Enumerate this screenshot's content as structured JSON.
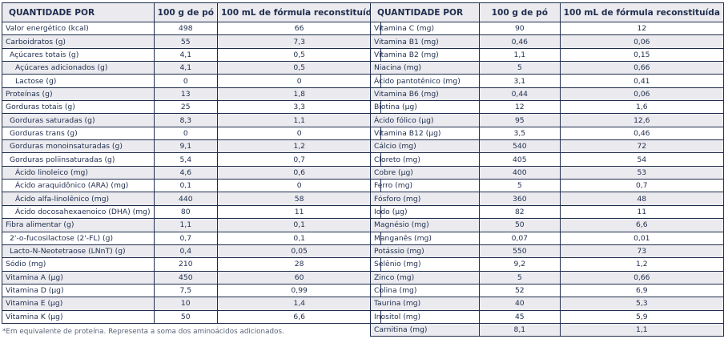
{
  "headers": {
    "quantity": "QUANTIDADE POR",
    "per_100g": "100 g de pó",
    "per_100ml": "100 mL de fórmula reconstituída"
  },
  "left_rows": [
    {
      "label": "Valor energético (kcal)",
      "v1": "498",
      "v2": "66",
      "indent": 0
    },
    {
      "label": "Carboidratos (g)",
      "v1": "55",
      "v2": "7,3",
      "indent": 0
    },
    {
      "label": "Açúcares totais (g)",
      "v1": "4,1",
      "v2": "0,5",
      "indent": 1
    },
    {
      "label": "Açúcares adicionados (g)",
      "v1": "4,1",
      "v2": "0,5",
      "indent": 2
    },
    {
      "label": "Lactose (g)",
      "v1": "0",
      "v2": "0",
      "indent": 2
    },
    {
      "label": "Proteínas (g)",
      "v1": "13",
      "v2": "1,8",
      "indent": 0
    },
    {
      "label": "Gorduras totais (g)",
      "v1": "25",
      "v2": "3,3",
      "indent": 0
    },
    {
      "label": "Gorduras saturadas (g)",
      "v1": "8,3",
      "v2": "1,1",
      "indent": 1
    },
    {
      "label": "Gorduras trans (g)",
      "v1": "0",
      "v2": "0",
      "indent": 1
    },
    {
      "label": "Gorduras monoinsaturadas (g)",
      "v1": "9,1",
      "v2": "1,2",
      "indent": 1
    },
    {
      "label": "Gorduras poli­insaturadas (g)",
      "v1": "5,4",
      "v2": "0,7",
      "indent": 1
    },
    {
      "label": "Ácido linoleico (mg)",
      "v1": "4,6",
      "v2": "0,6",
      "indent": 2
    },
    {
      "label": "Ácido araquidônico (ARA) (mg)",
      "v1": "0,1",
      "v2": "0",
      "indent": 2
    },
    {
      "label": "Ácido alfa-linolênico (mg)",
      "v1": "440",
      "v2": "58",
      "indent": 2
    },
    {
      "label": "Ácido docosahexaenoico (DHA) (mg)",
      "v1": "80",
      "v2": "11",
      "indent": 2
    },
    {
      "label": "Fibra alimentar (g)",
      "v1": "1,1",
      "v2": "0,1",
      "indent": 0
    },
    {
      "label": "2'-o-fucosilactose (2'-FL) (g)",
      "v1": "0,7",
      "v2": "0,1",
      "indent": 1
    },
    {
      "label": "Lacto-N-Neotetraose (LNnT) (g)",
      "v1": "0,4",
      "v2": "0,05",
      "indent": 1
    },
    {
      "label": "Sódio (mg)",
      "v1": "210",
      "v2": "28",
      "indent": 0
    },
    {
      "label": "Vitamina A (µg)",
      "v1": "450",
      "v2": "60",
      "indent": 0
    },
    {
      "label": "Vitamina D (µg)",
      "v1": "7,5",
      "v2": "0,99",
      "indent": 0
    },
    {
      "label": "Vitamina E (µg)",
      "v1": "10",
      "v2": "1,4",
      "indent": 0
    },
    {
      "label": "Vitamina K (µg)",
      "v1": "50",
      "v2": "6,6",
      "indent": 0
    }
  ],
  "right_rows": [
    {
      "label": "Vitamina C (mg)",
      "v1": "90",
      "v2": "12"
    },
    {
      "label": "Vitamina B1 (mg)",
      "v1": "0,46",
      "v2": "0,06"
    },
    {
      "label": "Vitamina B2 (mg)",
      "v1": "1,1",
      "v2": "0,15"
    },
    {
      "label": "Niacina (mg)",
      "v1": "5",
      "v2": "0,66"
    },
    {
      "label": "Ácido pantotênico (mg)",
      "v1": "3,1",
      "v2": "0,41"
    },
    {
      "label": "Vitamina B6 (mg)",
      "v1": "0,44",
      "v2": "0,06"
    },
    {
      "label": "Biotina (µg)",
      "v1": "12",
      "v2": "1,6"
    },
    {
      "label": "Ácido fólico (µg)",
      "v1": "95",
      "v2": "12,6"
    },
    {
      "label": "Vitamina B12 (µg)",
      "v1": "3,5",
      "v2": "0,46"
    },
    {
      "label": "Cálcio (mg)",
      "v1": "540",
      "v2": "72"
    },
    {
      "label": "Cloreto (mg)",
      "v1": "405",
      "v2": "54"
    },
    {
      "label": "Cobre (µg)",
      "v1": "400",
      "v2": "53"
    },
    {
      "label": "Ferro (mg)",
      "v1": "5",
      "v2": "0,7"
    },
    {
      "label": "Fósforo (mg)",
      "v1": "360",
      "v2": "48"
    },
    {
      "label": "Iodo (µg)",
      "v1": "82",
      "v2": "11"
    },
    {
      "label": "Magnésio (mg)",
      "v1": "50",
      "v2": "6,6"
    },
    {
      "label": "Manganês (mg)",
      "v1": "0,07",
      "v2": "0,01"
    },
    {
      "label": "Potássio (mg)",
      "v1": "550",
      "v2": "73"
    },
    {
      "label": "Selênio (mg)",
      "v1": "9,2",
      "v2": "1,2"
    },
    {
      "label": "Zinco (mg)",
      "v1": "5",
      "v2": "0,66"
    },
    {
      "label": "Colina (mg)",
      "v1": "52",
      "v2": "6,9"
    },
    {
      "label": "Taurina (mg)",
      "v1": "40",
      "v2": "5,3"
    },
    {
      "label": "Inositol (mg)",
      "v1": "45",
      "v2": "5,9"
    },
    {
      "label": "Carnitina (mg)",
      "v1": "8,1",
      "v2": "1,1"
    }
  ],
  "footnote": "*Em equivalente de proteína. Representa a soma dos aminoácidos adicionados.",
  "colors": {
    "text": "#1f2d4d",
    "shade": "#ebebef",
    "border": "#1f2d4d"
  }
}
